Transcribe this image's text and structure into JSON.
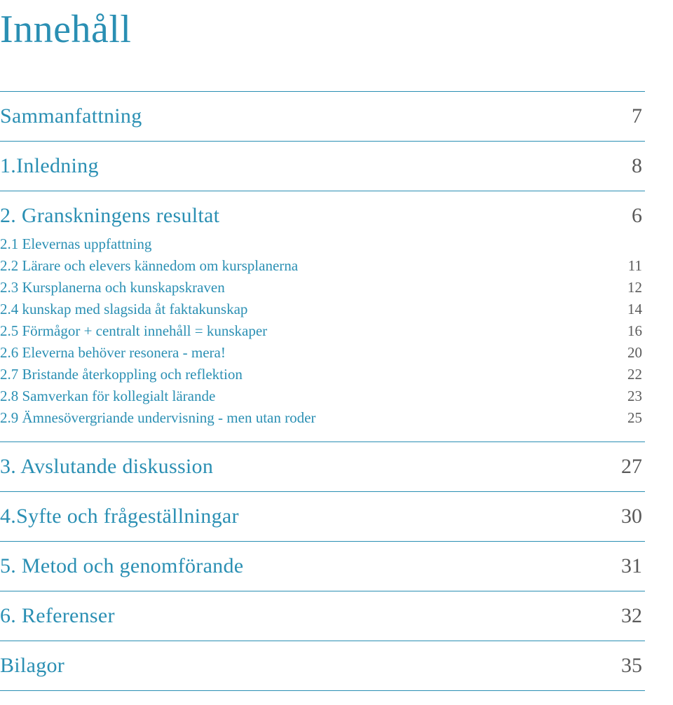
{
  "colors": {
    "accent": "#2a8fb3",
    "text": "#5a5a5a",
    "rule": "#2a8fb3",
    "background": "#ffffff"
  },
  "typography": {
    "title_fontsize": 56,
    "main_fontsize": 30,
    "sub_fontsize": 21,
    "font_family": "Georgia, serif"
  },
  "title": "Innehåll",
  "sections": [
    {
      "label": "Sammanfattning",
      "page": "7",
      "subs": []
    },
    {
      "label": "1.Inledning",
      "page": "8",
      "subs": []
    },
    {
      "label": "2. Granskningens resultat",
      "page": "6",
      "subs": [
        {
          "label": "2.1 Elevernas uppfattning",
          "page": ""
        },
        {
          "label": "2.2 Lärare och elevers kännedom om kursplanerna",
          "page": "11"
        },
        {
          "label": "2.3 Kursplanerna och kunskapskraven",
          "page": "12"
        },
        {
          "label": "2.4 kunskap med slagsida åt faktakunskap",
          "page": "14"
        },
        {
          "label": "2.5 Förmågor + centralt innehåll = kunskaper",
          "page": "16"
        },
        {
          "label": "2.6 Eleverna behöver resonera - mera!",
          "page": "20"
        },
        {
          "label": "2.7 Bristande återkoppling och reflektion",
          "page": "22"
        },
        {
          "label": "2.8 Samverkan för kollegialt lärande",
          "page": "23"
        },
        {
          "label": "2.9 Ämnesövergriande undervisning - men utan roder",
          "page": "25"
        }
      ]
    },
    {
      "label": "3. Avslutande diskussion",
      "page": "27",
      "subs": []
    },
    {
      "label": "4.Syfte och frågeställningar",
      "page": "30",
      "subs": []
    },
    {
      "label": "5. Metod och genomförande",
      "page": "31",
      "subs": []
    },
    {
      "label": "6. Referenser",
      "page": "32",
      "subs": []
    },
    {
      "label": "Bilagor",
      "page": "35",
      "subs": []
    }
  ]
}
